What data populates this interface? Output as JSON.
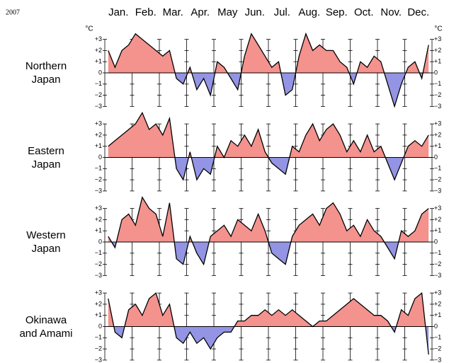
{
  "chart_data": {
    "type": "area",
    "year": "2007",
    "unit": "°C",
    "categories": [
      "Jan.",
      "Feb.",
      "Mar.",
      "Apr.",
      "May",
      "Jun.",
      "Jul.",
      "Aug.",
      "Sep.",
      "Oct.",
      "Nov.",
      "Dec."
    ],
    "ylim": [
      -3,
      3
    ],
    "yticks": [
      {
        "value": 3,
        "label": "+3"
      },
      {
        "value": 2,
        "label": "+2"
      },
      {
        "value": 1,
        "label": "+1"
      },
      0,
      {
        "value": -1,
        "label": "−1"
      },
      {
        "value": -2,
        "label": "−2"
      },
      {
        "value": -3,
        "label": "−3"
      }
    ],
    "positive_color": "#f4928e",
    "negative_color": "#9494e4",
    "line_color": "#000000",
    "series": [
      {
        "name": "Northern Japan",
        "values": [
          [
            2,
            0.5,
            2,
            2.5
          ],
          [
            3.5,
            3,
            2.5,
            2
          ],
          [
            1.5,
            2,
            -0.5,
            -1
          ],
          [
            0.5,
            -1.5,
            -0.5,
            -2
          ],
          [
            1,
            0.5,
            -0.5,
            -1.5
          ],
          [
            1.5,
            3.5,
            2.5,
            1.5
          ],
          [
            0.5,
            1,
            -2,
            -1.5
          ],
          [
            1.5,
            3.5,
            2,
            2.5
          ],
          [
            2,
            2,
            1,
            0.5
          ],
          [
            -1,
            1,
            0.5,
            1.5
          ],
          [
            1,
            -1,
            -3,
            -1
          ],
          [
            0.5,
            1,
            -0.5,
            2.5
          ]
        ]
      },
      {
        "name": "Eastern Japan",
        "values": [
          [
            1,
            1.5,
            2,
            2.5
          ],
          [
            3,
            4,
            2.5,
            3
          ],
          [
            2,
            3.5,
            -1,
            -2
          ],
          [
            0.5,
            -2,
            -1,
            -1.5
          ],
          [
            1,
            0,
            1.5,
            1
          ],
          [
            2,
            1,
            2.5,
            0.5
          ],
          [
            -0.5,
            -1,
            -1.5,
            1
          ],
          [
            0.5,
            2,
            3,
            1.5
          ],
          [
            2.5,
            3,
            2,
            0.5
          ],
          [
            1.5,
            0.5,
            2,
            0.5
          ],
          [
            1,
            -0.5,
            -2,
            -0.5
          ],
          [
            1,
            1.5,
            1,
            2
          ]
        ]
      },
      {
        "name": "Western Japan",
        "values": [
          [
            0.5,
            -0.5,
            2,
            2.5
          ],
          [
            1.5,
            4,
            3,
            2.5
          ],
          [
            0.5,
            3.5,
            -1.5,
            -2
          ],
          [
            0.5,
            -1,
            -2,
            0.5
          ],
          [
            1,
            1.5,
            0.5,
            2
          ],
          [
            1.5,
            1,
            2.5,
            1
          ],
          [
            -1,
            -1.5,
            -2,
            0.5
          ],
          [
            1.5,
            2,
            2.5,
            1.5
          ],
          [
            3,
            3.5,
            2.5,
            1
          ],
          [
            1.5,
            0.5,
            2,
            1
          ],
          [
            0.5,
            -0.5,
            -1.5,
            1
          ],
          [
            0.5,
            1,
            2.5,
            3
          ]
        ]
      },
      {
        "name": "Okinawa and Amami",
        "values": [
          [
            2.5,
            -0.5,
            -1,
            1.5
          ],
          [
            2,
            1,
            2.5,
            3
          ],
          [
            1,
            2,
            -1,
            -1.5
          ],
          [
            -0.5,
            -1.5,
            -1,
            -2
          ],
          [
            -1,
            -0.5,
            -0.5,
            0.5
          ],
          [
            0.5,
            1,
            1,
            1.5
          ],
          [
            1,
            1.5,
            1,
            1.5
          ],
          [
            1,
            0.5,
            0,
            0.5
          ],
          [
            0.5,
            1,
            1.5,
            2
          ],
          [
            2.5,
            2,
            1.5,
            1
          ],
          [
            1,
            0.5,
            -0.5,
            1.5
          ],
          [
            1,
            2.5,
            3,
            -2.5
          ]
        ]
      }
    ]
  }
}
